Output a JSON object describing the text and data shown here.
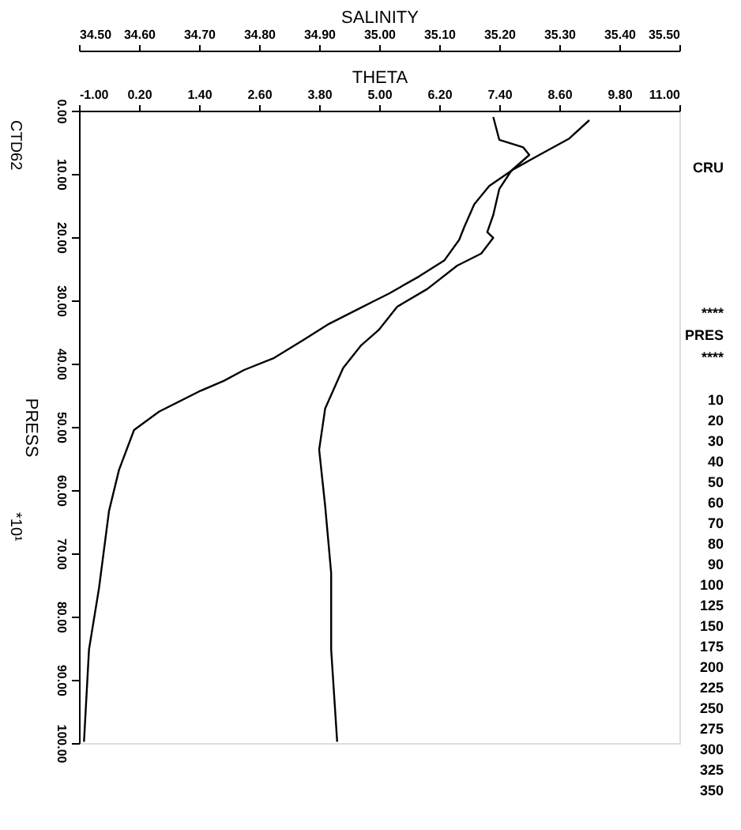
{
  "chart_data": {
    "type": "line",
    "xlabel": "THETA",
    "x2label": "SALINITY",
    "ylabel": "PRESS",
    "xlim": [
      -1,
      11
    ],
    "xticks": [
      {
        "value": -1,
        "label": "-1.00"
      },
      {
        "value": 0.2,
        "label": "0.20"
      },
      {
        "value": 1.4,
        "label": "1.40"
      },
      {
        "value": 2.6,
        "label": "2.60"
      },
      {
        "value": 3.8,
        "label": "3.80"
      },
      {
        "value": 5,
        "label": "5.00"
      },
      {
        "value": 6.2,
        "label": "6.20"
      },
      {
        "value": 7.4,
        "label": "7.40"
      },
      {
        "value": 8.6,
        "label": "8.60"
      },
      {
        "value": 9.8,
        "label": "9.80"
      },
      {
        "value": 11,
        "label": "11.00"
      }
    ],
    "x2lim": [
      34.5,
      35.5
    ],
    "x2ticks": [
      {
        "value": 34.5,
        "label": "34.50"
      },
      {
        "value": 34.6,
        "label": "34.60"
      },
      {
        "value": 34.7,
        "label": "34.70"
      },
      {
        "value": 34.8,
        "label": "34.80"
      },
      {
        "value": 34.9,
        "label": "34.90"
      },
      {
        "value": 35.0,
        "label": "35.00"
      },
      {
        "value": 35.1,
        "label": "35.10"
      },
      {
        "value": 35.2,
        "label": "35.20"
      },
      {
        "value": 35.3,
        "label": "35.30"
      },
      {
        "value": 35.4,
        "label": "35.40"
      },
      {
        "value": 35.5,
        "label": "35.50"
      }
    ],
    "ylim": [
      100,
      0
    ],
    "yticks": [
      {
        "value": 0,
        "label": "0.00"
      },
      {
        "value": 10,
        "label": "10.00"
      },
      {
        "value": 20,
        "label": "20.00"
      },
      {
        "value": 30,
        "label": "30.00"
      },
      {
        "value": 40,
        "label": "40.00"
      },
      {
        "value": 50,
        "label": "50.00"
      },
      {
        "value": 60,
        "label": "60.00"
      },
      {
        "value": 70,
        "label": "70.00"
      },
      {
        "value": 80,
        "label": "80.00"
      },
      {
        "value": 90,
        "label": "90.00"
      },
      {
        "value": 100,
        "label": "100.00"
      }
    ],
    "grid": false,
    "marker": "none",
    "line_style": "solid",
    "series": [
      {
        "color": "#000000",
        "values": [
          1.5,
          4.4,
          7.0,
          9.2,
          11.9,
          14.8,
          18.4,
          20.4,
          23.7,
          26.2,
          28.9,
          30.1,
          31.3,
          33.7,
          36.2,
          39.1,
          41.0,
          42.7,
          44.4,
          47.6,
          50.5,
          56.8,
          63.3,
          75.5,
          85.2,
          99.8
        ],
        "x": [
          9.2,
          8.8,
          8.2,
          7.7,
          7.2,
          6.9,
          6.7,
          6.6,
          6.3,
          5.8,
          5.2,
          4.9,
          4.6,
          4.0,
          3.5,
          2.9,
          2.3,
          1.9,
          1.4,
          0.6,
          0.1,
          -0.2,
          -0.4,
          -0.6,
          -0.8,
          -0.9
        ]
      },
      {
        "color": "#000000",
        "axis": "x2",
        "values": [
          1.0,
          4.6,
          5.8,
          7.0,
          9.5,
          12.4,
          16.5,
          19.2,
          20.1,
          22.6,
          24.5,
          28.2,
          31.0,
          34.6,
          37.1,
          40.7,
          47.1,
          53.6,
          62.5,
          73.1,
          85.2,
          99.8
        ],
        "x": [
          35.19,
          35.2,
          35.24,
          35.25,
          35.22,
          35.2,
          35.19,
          35.18,
          35.19,
          35.17,
          35.13,
          35.08,
          35.03,
          35.0,
          34.97,
          34.94,
          34.91,
          34.9,
          34.91,
          34.92,
          34.92,
          34.93
        ]
      }
    ],
    "annotations": [
      "CTD62",
      "*10¹",
      "CRU",
      "****",
      "PRES",
      "****",
      "10",
      "20",
      "30",
      "40",
      "50",
      "60",
      "70",
      "80",
      "90",
      "100",
      "125",
      "150",
      "175",
      "200",
      "225",
      "250",
      "275",
      "300",
      "325",
      "350"
    ]
  }
}
